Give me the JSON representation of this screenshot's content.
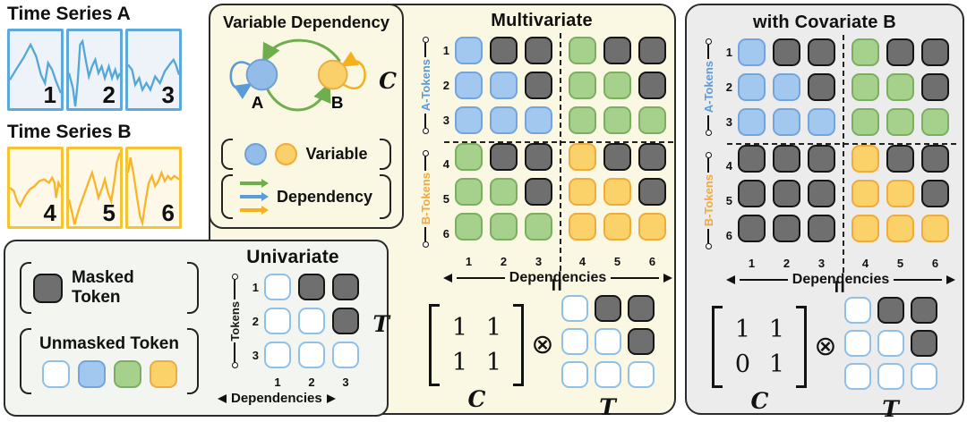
{
  "colors": {
    "blue_token": "#a2c8f0",
    "blue_token_border": "#74a4dc",
    "green_token": "#a6d18d",
    "green_token_border": "#7baf60",
    "yellow_token": "#fbd269",
    "yellow_token_border": "#efac3d",
    "masked_token": "#6f6f6f",
    "masked_token_border": "#151515",
    "unmasked_token_border": "#8fc0ea",
    "panel_cream": "#faf7e2",
    "panel_gray": "#ececec",
    "panel_graygreen": "#f2f5f0",
    "series_a_line": "#56a7d8",
    "series_b_line": "#f8b52b",
    "a_tokens_label": "#5b9bd8",
    "b_tokens_label": "#f2a93b"
  },
  "time_series_a": {
    "title": "Time Series A",
    "patch_labels": [
      "1",
      "2",
      "3"
    ]
  },
  "time_series_b": {
    "title": "Time Series B",
    "patch_labels": [
      "4",
      "5",
      "6"
    ]
  },
  "variable_dependency": {
    "title": "Variable Dependency",
    "node_a": "A",
    "node_b": "B",
    "c_label": "C",
    "legend_variable": "Variable",
    "legend_dependency": "Dependency"
  },
  "multivariate": {
    "title": "Multivariate",
    "row_axis_top": "A-Tokens",
    "row_axis_bottom": "B-Tokens",
    "row_labels": [
      "1",
      "2",
      "3",
      "4",
      "5",
      "6"
    ],
    "col_labels": [
      "1",
      "2",
      "3",
      "4",
      "5",
      "6"
    ],
    "x_axis_label": "Dependencies",
    "mask": [
      [
        "blue",
        "dark",
        "dark",
        "green",
        "dark",
        "dark"
      ],
      [
        "blue",
        "blue",
        "dark",
        "green",
        "green",
        "dark"
      ],
      [
        "blue",
        "blue",
        "blue",
        "green",
        "green",
        "green"
      ],
      [
        "green",
        "dark",
        "dark",
        "yellow",
        "dark",
        "dark"
      ],
      [
        "green",
        "green",
        "dark",
        "yellow",
        "yellow",
        "dark"
      ],
      [
        "green",
        "green",
        "green",
        "yellow",
        "yellow",
        "yellow"
      ]
    ],
    "equals_sign": "=",
    "matrix": [
      [
        "1",
        "1"
      ],
      [
        "1",
        "1"
      ]
    ],
    "matrix_label": "C",
    "kron_symbol": "⊗",
    "t_grid": [
      [
        "white",
        "dark",
        "dark"
      ],
      [
        "white",
        "white",
        "dark"
      ],
      [
        "white",
        "white",
        "white"
      ]
    ],
    "t_label": "T"
  },
  "covariate": {
    "title": "with Covariate B",
    "row_axis_top": "A-Tokens",
    "row_axis_bottom": "B-Tokens",
    "row_labels": [
      "1",
      "2",
      "3",
      "4",
      "5",
      "6"
    ],
    "col_labels": [
      "1",
      "2",
      "3",
      "4",
      "5",
      "6"
    ],
    "x_axis_label": "Dependencies",
    "mask": [
      [
        "blue",
        "dark",
        "dark",
        "green",
        "dark",
        "dark"
      ],
      [
        "blue",
        "blue",
        "dark",
        "green",
        "green",
        "dark"
      ],
      [
        "blue",
        "blue",
        "blue",
        "green",
        "green",
        "green"
      ],
      [
        "dark",
        "dark",
        "dark",
        "yellow",
        "dark",
        "dark"
      ],
      [
        "dark",
        "dark",
        "dark",
        "yellow",
        "yellow",
        "dark"
      ],
      [
        "dark",
        "dark",
        "dark",
        "yellow",
        "yellow",
        "yellow"
      ]
    ],
    "equals_sign": "=",
    "matrix": [
      [
        "1",
        "1"
      ],
      [
        "0",
        "1"
      ]
    ],
    "matrix_label": "C",
    "kron_symbol": "⊗",
    "t_grid": [
      [
        "white",
        "dark",
        "dark"
      ],
      [
        "white",
        "white",
        "dark"
      ],
      [
        "white",
        "white",
        "white"
      ]
    ],
    "t_label": "T"
  },
  "legend": {
    "masked_label": "Masked Token",
    "unmasked_label": "Unmasked Token",
    "unmasked_swatches": [
      "white",
      "blue",
      "green",
      "yellow"
    ]
  },
  "univariate": {
    "title": "Univariate",
    "row_axis": "Tokens",
    "row_labels": [
      "1",
      "2",
      "3"
    ],
    "col_labels": [
      "1",
      "2",
      "3"
    ],
    "x_axis_label": "Dependencies",
    "grid": [
      [
        "white",
        "dark",
        "dark"
      ],
      [
        "white",
        "white",
        "dark"
      ],
      [
        "white",
        "white",
        "white"
      ]
    ],
    "t_label": "T"
  }
}
